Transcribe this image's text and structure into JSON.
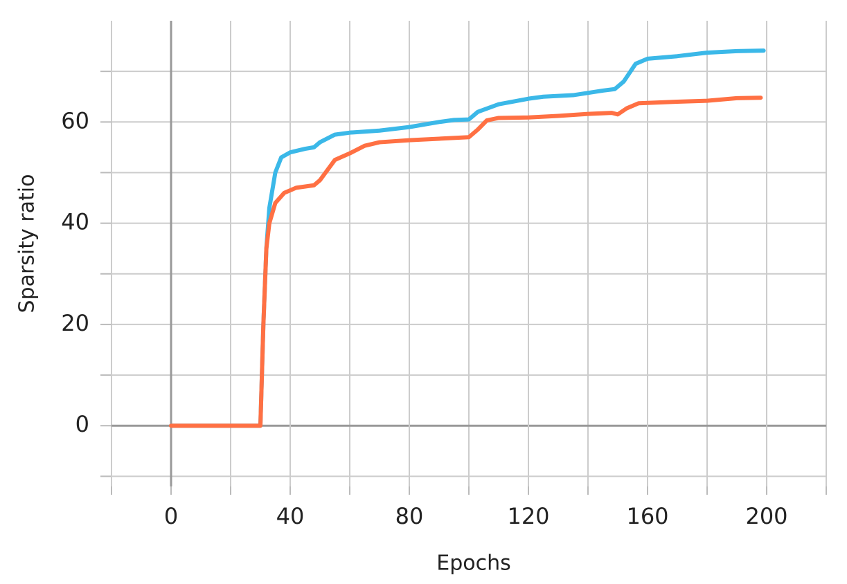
{
  "chart_data": {
    "type": "line",
    "x_label": "Epochs",
    "y_label": "Sparsity ratio",
    "xlim": [
      -20,
      220
    ],
    "ylim": [
      -12,
      80
    ],
    "xticks": [
      0,
      40,
      80,
      120,
      160,
      200
    ],
    "yticks": [
      0,
      20,
      40,
      60
    ],
    "minor_xticks": [
      -20,
      20,
      60,
      100,
      140,
      180,
      220
    ],
    "minor_yticks": [
      -10,
      10,
      30,
      50,
      70
    ],
    "grid": true,
    "series": [
      {
        "color": "#3bb8e8",
        "x": [
          0,
          30,
          31,
          32,
          33,
          35,
          37,
          40,
          45,
          48,
          50,
          55,
          60,
          70,
          80,
          90,
          95,
          100,
          103,
          110,
          120,
          125,
          135,
          145,
          149,
          152,
          156,
          160,
          170,
          180,
          190,
          199
        ],
        "values": [
          0,
          0,
          20,
          35,
          43,
          50,
          53,
          54,
          54.7,
          55,
          56,
          57.5,
          57.9,
          58.3,
          59,
          60,
          60.4,
          60.5,
          62,
          63.5,
          64.6,
          65,
          65.3,
          66.2,
          66.5,
          68,
          71.5,
          72.5,
          73,
          73.7,
          74,
          74.1
        ]
      },
      {
        "color": "#ff7043",
        "x": [
          0,
          30,
          31,
          32,
          33,
          35,
          38,
          42,
          48,
          50,
          55,
          60,
          65,
          70,
          80,
          90,
          100,
          103,
          106,
          110,
          120,
          130,
          140,
          148,
          150,
          153,
          157,
          170,
          180,
          190,
          198
        ],
        "values": [
          0,
          0,
          20,
          35,
          40,
          44,
          46,
          47,
          47.5,
          48.5,
          52.5,
          53.8,
          55.3,
          56,
          56.4,
          56.7,
          57,
          58.5,
          60.3,
          60.8,
          60.9,
          61.2,
          61.6,
          61.8,
          61.5,
          62.7,
          63.7,
          64,
          64.2,
          64.7,
          64.8
        ]
      }
    ]
  }
}
